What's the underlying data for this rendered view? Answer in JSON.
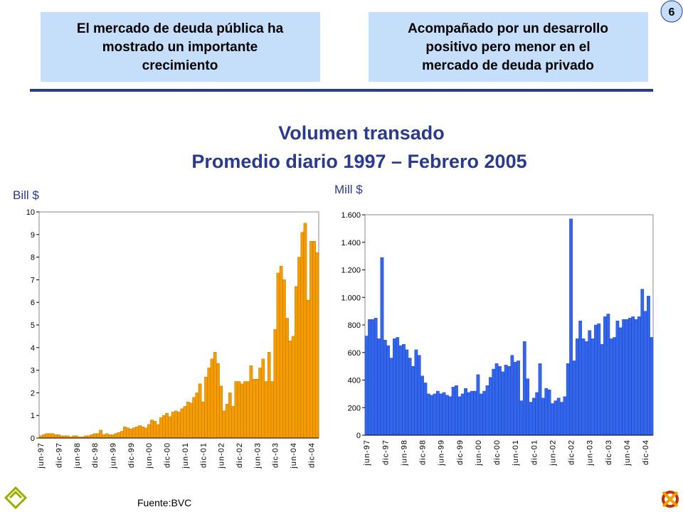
{
  "header_boxes": [
    "El mercado de deuda pública ha mostrado un importante crecimiento",
    "Acompañado por un desarrollo positivo pero menor en el mercado de  deuda privado"
  ],
  "page_number": "6",
  "title": "Volumen transado",
  "subtitle": "Promedio diario 1997 – Febrero 2005",
  "source": "Fuente:BVC",
  "chart_data": [
    {
      "type": "bar",
      "y_label": "Bill $",
      "color": "#f59c00",
      "categories": [
        "jun-97",
        null,
        null,
        null,
        null,
        null,
        "dic-97",
        null,
        null,
        null,
        null,
        null,
        "jun-98",
        null,
        null,
        null,
        null,
        null,
        "dic-98",
        null,
        null,
        null,
        null,
        null,
        "jun-99",
        null,
        null,
        null,
        null,
        null,
        "dic-99",
        null,
        null,
        null,
        null,
        null,
        "jun-00",
        null,
        null,
        null,
        null,
        null,
        "dic-00",
        null,
        null,
        null,
        null,
        null,
        "jun-01",
        null,
        null,
        null,
        null,
        null,
        "dic-01",
        null,
        null,
        null,
        null,
        null,
        "jun-02",
        null,
        null,
        null,
        null,
        null,
        "dic-02",
        null,
        null,
        null,
        null,
        null,
        "jun-03",
        null,
        null,
        null,
        null,
        null,
        "dic-03",
        null,
        null,
        null,
        null,
        null,
        "jun-04",
        null,
        null,
        null,
        null,
        null,
        "dic-04",
        null,
        null
      ],
      "values": [
        0.1,
        0.15,
        0.2,
        0.2,
        0.2,
        0.15,
        0.15,
        0.1,
        0.1,
        0.1,
        0.05,
        0.1,
        0.1,
        0.05,
        0.05,
        0.1,
        0.1,
        0.15,
        0.2,
        0.2,
        0.35,
        0.15,
        0.2,
        0.15,
        0.15,
        0.2,
        0.25,
        0.3,
        0.5,
        0.45,
        0.4,
        0.45,
        0.5,
        0.55,
        0.5,
        0.45,
        0.6,
        0.8,
        0.75,
        0.6,
        0.9,
        1.0,
        1.1,
        0.95,
        1.15,
        1.2,
        1.15,
        1.3,
        1.4,
        1.6,
        1.55,
        1.8,
        2.0,
        2.4,
        1.6,
        2.7,
        3.1,
        3.5,
        3.8,
        3.3,
        2.3,
        1.2,
        1.5,
        2.0,
        1.4,
        2.5,
        2.5,
        2.4,
        2.5,
        2.5,
        3.2,
        2.6,
        2.6,
        3.1,
        3.5,
        2.5,
        3.8,
        2.5,
        4.8,
        7.3,
        7.6,
        7.0,
        5.3,
        4.3,
        4.5,
        6.7,
        8.0,
        9.1,
        9.5,
        6.1,
        8.7,
        8.7,
        8.2
      ],
      "ylim": [
        0,
        10
      ],
      "yticks": [
        0,
        1,
        2,
        3,
        4,
        5,
        6,
        7,
        8,
        9,
        10
      ]
    },
    {
      "type": "bar",
      "y_label": "Mill $",
      "color": "#3366ee",
      "categories": [
        "jun-97",
        null,
        null,
        null,
        null,
        null,
        "dic-97",
        null,
        null,
        null,
        null,
        null,
        "jun-98",
        null,
        null,
        null,
        null,
        null,
        "dic-98",
        null,
        null,
        null,
        null,
        null,
        "jun-99",
        null,
        null,
        null,
        null,
        null,
        "dic-99",
        null,
        null,
        null,
        null,
        null,
        "jun-00",
        null,
        null,
        null,
        null,
        null,
        "dic-00",
        null,
        null,
        null,
        null,
        null,
        "jun-01",
        null,
        null,
        null,
        null,
        null,
        "dic-01",
        null,
        null,
        null,
        null,
        null,
        "jun-02",
        null,
        null,
        null,
        null,
        null,
        "dic-02",
        null,
        null,
        null,
        null,
        null,
        "jun-03",
        null,
        null,
        null,
        null,
        null,
        "dic-03",
        null,
        null,
        null,
        null,
        null,
        "jun-04",
        null,
        null,
        null,
        null,
        null,
        "dic-04",
        null,
        null
      ],
      "values": [
        720,
        840,
        840,
        850,
        700,
        1290,
        690,
        650,
        560,
        700,
        710,
        650,
        660,
        620,
        560,
        500,
        620,
        580,
        430,
        380,
        300,
        290,
        300,
        320,
        300,
        310,
        290,
        280,
        350,
        360,
        280,
        300,
        340,
        310,
        320,
        320,
        440,
        300,
        320,
        360,
        420,
        480,
        520,
        500,
        460,
        510,
        500,
        580,
        530,
        540,
        250,
        680,
        410,
        240,
        270,
        310,
        520,
        270,
        340,
        330,
        230,
        250,
        270,
        240,
        280,
        520,
        1570,
        540,
        700,
        830,
        700,
        680,
        760,
        700,
        800,
        810,
        660,
        860,
        880,
        700,
        710,
        830,
        780,
        840,
        840,
        850,
        860,
        840,
        860,
        1060,
        900,
        1010,
        710
      ],
      "ylim": [
        0,
        1600
      ],
      "yticks": [
        0,
        200,
        400,
        600,
        800,
        {
          "value": 1000,
          "label": "1.000"
        },
        {
          "value": 1200,
          "label": "1.200"
        },
        {
          "value": 1400,
          "label": "1.400"
        },
        {
          "value": 1600,
          "label": "1.600"
        }
      ]
    }
  ]
}
